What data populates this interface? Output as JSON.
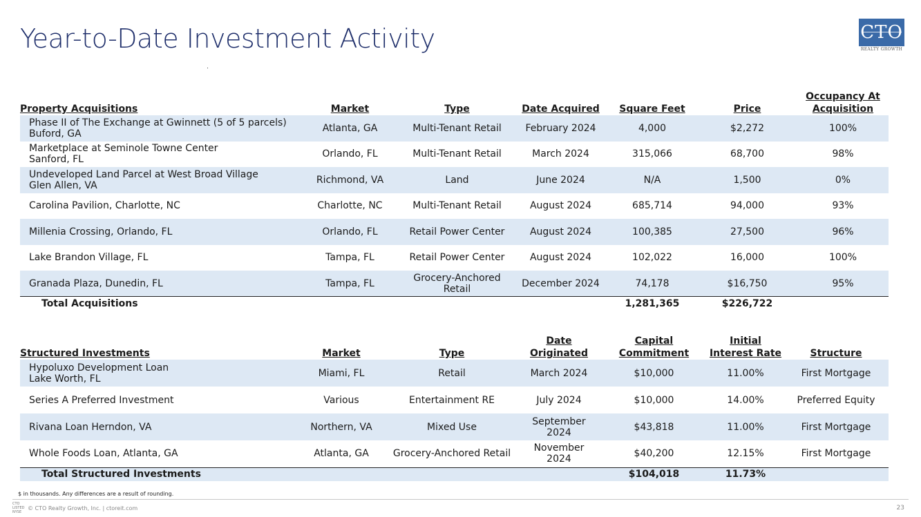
{
  "title": "Year-to-Date Investment Activity",
  "logo": {
    "text": "CTO",
    "subtext": "REALTY GROWTH"
  },
  "acquisitions": {
    "headers": {
      "name": "Property Acquisitions",
      "market": "Market",
      "type": "Type",
      "date": "Date Acquired",
      "sqft": "Square Feet",
      "price": "Price",
      "occ_line1": "Occupancy At",
      "occ_line2": "Acquisition"
    },
    "rows": [
      {
        "name1": "Phase II of The Exchange at Gwinnett (5 of 5 parcels)",
        "name2": "Buford, GA",
        "market": "Atlanta, GA",
        "type1": "Multi-Tenant Retail",
        "type2": "",
        "date": "February 2024",
        "sqft": "4,000",
        "price": "$2,272",
        "occ": "100%"
      },
      {
        "name1": "Marketplace at Seminole Towne Center",
        "name2": "Sanford, FL",
        "market": "Orlando, FL",
        "type1": "Multi-Tenant Retail",
        "type2": "",
        "date": "March 2024",
        "sqft": "315,066",
        "price": "68,700",
        "occ": "98%"
      },
      {
        "name1": "Undeveloped Land Parcel at West Broad Village",
        "name2": "Glen Allen, VA",
        "market": "Richmond, VA",
        "type1": "Land",
        "type2": "",
        "date": "June 2024",
        "sqft": "N/A",
        "price": "1,500",
        "occ": "0%"
      },
      {
        "name1": "Carolina Pavilion, Charlotte, NC",
        "name2": "",
        "market": "Charlotte, NC",
        "type1": "Multi-Tenant Retail",
        "type2": "",
        "date": "August 2024",
        "sqft": "685,714",
        "price": "94,000",
        "occ": "93%"
      },
      {
        "name1": "Millenia Crossing, Orlando, FL",
        "name2": "",
        "market": "Orlando, FL",
        "type1": "Retail Power Center",
        "type2": "",
        "date": "August 2024",
        "sqft": "100,385",
        "price": "27,500",
        "occ": "96%"
      },
      {
        "name1": "Lake Brandon Village, FL",
        "name2": "",
        "market": "Tampa, FL",
        "type1": "Retail Power Center",
        "type2": "",
        "date": "August 2024",
        "sqft": "102,022",
        "price": "16,000",
        "occ": "100%"
      },
      {
        "name1": "Granada Plaza, Dunedin, FL",
        "name2": "",
        "market": "Tampa, FL",
        "type1": "Grocery-Anchored",
        "type2": "Retail",
        "date": "December 2024",
        "sqft": "74,178",
        "price": "$16,750",
        "occ": "95%"
      }
    ],
    "total": {
      "label": "Total Acquisitions",
      "sqft": "1,281,365",
      "price": "$226,722"
    }
  },
  "structured": {
    "headers": {
      "name": "Structured Investments",
      "market": "Market",
      "type": "Type",
      "date": "Date Originated",
      "cap_line1": "Capital",
      "cap_line2": "Commitment",
      "rate_line1": "Initial",
      "rate_line2": "Interest Rate",
      "structure": "Structure"
    },
    "rows": [
      {
        "name1": "Hypoluxo Development Loan",
        "name2": "Lake Worth, FL",
        "market": "Miami, FL",
        "type": "Retail",
        "date": "March 2024",
        "commitment": "$10,000",
        "rate": "11.00%",
        "structure": "First Mortgage"
      },
      {
        "name1": "Series A Preferred Investment",
        "name2": "",
        "market": "Various",
        "type": "Entertainment RE",
        "date": "July 2024",
        "commitment": "$10,000",
        "rate": "14.00%",
        "structure": "Preferred Equity"
      },
      {
        "name1": "Rivana Loan Herndon, VA",
        "name2": "",
        "market": "Northern, VA",
        "type": "Mixed Use",
        "date": "September 2024",
        "commitment": "$43,818",
        "rate": "11.00%",
        "structure": "First Mortgage"
      },
      {
        "name1": "Whole Foods Loan, Atlanta, GA",
        "name2": "",
        "market": "Atlanta, GA",
        "type": "Grocery-Anchored Retail",
        "date": "November 2024",
        "commitment": "$40,200",
        "rate": "12.15%",
        "structure": "First Mortgage"
      }
    ],
    "total": {
      "label": "Total Structured Investments",
      "commitment": "$104,018",
      "rate": "11.73%"
    }
  },
  "footnote": "$ in thousands. Any differences are a result of rounding.",
  "footer": {
    "logo_lines": [
      "CTO",
      "LISTED",
      "NYSE"
    ],
    "copyright": "© CTO Realty Growth, Inc. | ctoreit.com",
    "page": "23"
  }
}
